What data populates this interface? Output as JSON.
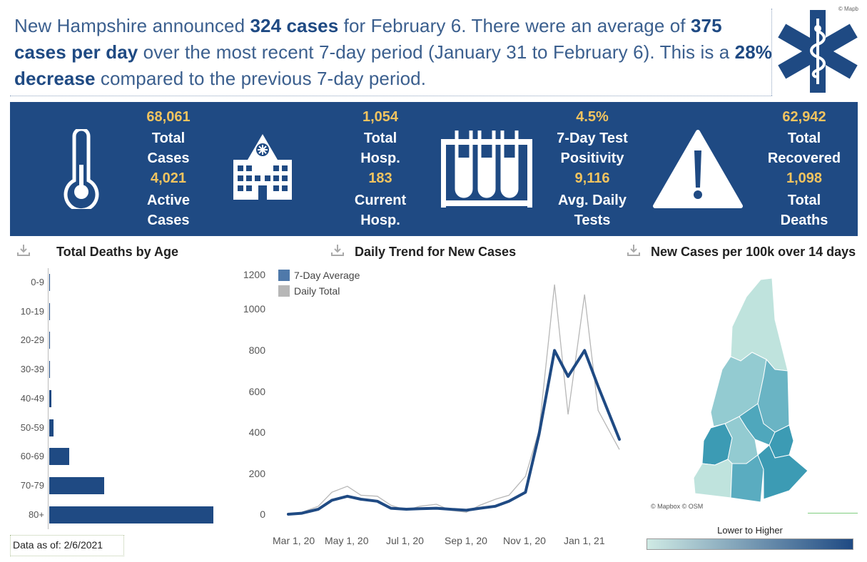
{
  "attribution_top": "© Mapb",
  "headline": {
    "p1": "New Hampshire announced ",
    "cases": "324 cases",
    "p2": " for February 6. There were an average of ",
    "avg": "375 cases per day",
    "p3": " over the most recent 7-day period (January 31 to February 6). This is a ",
    "change": "28% decrease",
    "p4": " compared to the previous 7-day period."
  },
  "kpis": {
    "total_cases": {
      "value": "68,061",
      "label1": "Total",
      "label2": "Cases"
    },
    "active_cases": {
      "value": "4,021",
      "label1": "Active",
      "label2": "Cases"
    },
    "total_hosp": {
      "value": "1,054",
      "label1": "Total",
      "label2": "Hosp."
    },
    "current_hosp": {
      "value": "183",
      "label1": "Current",
      "label2": "Hosp."
    },
    "positivity": {
      "value": "4.5%",
      "label1": "7-Day Test",
      "label2": "Positivity"
    },
    "avg_tests": {
      "value": "9,116",
      "label1": "Avg. Daily",
      "label2": "Tests"
    },
    "total_recovered": {
      "value": "62,942",
      "label1": "Total",
      "label2": "Recovered"
    },
    "total_deaths": {
      "value": "1,098",
      "label1": "Total",
      "label2": "Deaths"
    }
  },
  "colors": {
    "banner": "#1f4a83",
    "accent": "#f2c45f",
    "line": "#1f4a83",
    "daily": "#b7b7b7"
  },
  "icons": [
    "thermometer-icon",
    "hospital-icon",
    "test-tubes-icon",
    "warning-icon",
    "star-of-life-icon",
    "download-icon"
  ],
  "deaths_by_age": {
    "title": "Total Deaths by Age",
    "categories": [
      "0-9",
      "10-19",
      "20-29",
      "30-39",
      "40-49",
      "50-59",
      "60-69",
      "70-79",
      "80+"
    ],
    "values": [
      0,
      0,
      1,
      1,
      10,
      22,
      106,
      290,
      868
    ],
    "xlim": [
      0,
      880
    ]
  },
  "daily_trend": {
    "title": "Daily Trend for New Cases",
    "legend": [
      "7-Day Average",
      "Daily Total"
    ],
    "y_ticks": [
      "0",
      "200",
      "400",
      "600",
      "800",
      "1000",
      "1200"
    ],
    "x_ticks": [
      "Mar 1, 20",
      "May 1, 20",
      "Jul 1, 20",
      "Sep 1, 20",
      "Nov 1, 20",
      "Jan 1, 21"
    ]
  },
  "chart_data": {
    "type": "line",
    "ylim": [
      0,
      1200
    ],
    "series": [
      {
        "name": "7-Day Average",
        "x": [
          "2020-03-01",
          "2020-03-15",
          "2020-04-01",
          "2020-04-15",
          "2020-05-01",
          "2020-05-15",
          "2020-06-01",
          "2020-06-15",
          "2020-07-01",
          "2020-07-15",
          "2020-08-01",
          "2020-08-15",
          "2020-09-01",
          "2020-09-15",
          "2020-10-01",
          "2020-10-15",
          "2020-11-01",
          "2020-11-15",
          "2020-12-01",
          "2020-12-15",
          "2021-01-01",
          "2021-01-15",
          "2021-02-06"
        ],
        "values": [
          0,
          5,
          25,
          70,
          90,
          75,
          65,
          30,
          25,
          28,
          30,
          25,
          20,
          30,
          40,
          65,
          110,
          400,
          820,
          690,
          820,
          640,
          375
        ]
      },
      {
        "name": "Daily Total",
        "x": [
          "2020-03-01",
          "2020-03-15",
          "2020-04-01",
          "2020-04-15",
          "2020-05-01",
          "2020-05-15",
          "2020-06-01",
          "2020-06-15",
          "2020-07-01",
          "2020-07-15",
          "2020-08-01",
          "2020-08-15",
          "2020-09-01",
          "2020-09-15",
          "2020-10-01",
          "2020-10-15",
          "2020-11-01",
          "2020-11-15",
          "2020-12-01",
          "2020-12-15",
          "2021-01-01",
          "2021-01-15",
          "2021-02-06"
        ],
        "values": [
          0,
          10,
          40,
          110,
          140,
          95,
          90,
          45,
          20,
          40,
          50,
          20,
          10,
          45,
          75,
          95,
          190,
          420,
          1150,
          500,
          1100,
          520,
          324
        ]
      }
    ]
  },
  "map_panel": {
    "title": "New Cases per 100k over 14 days",
    "attribution": "© Mapbox © OSM",
    "scale_label": "Lower to Higher",
    "scale_colors": [
      "#cfeae4",
      "#1f4a83"
    ]
  },
  "footer": {
    "data_asof": "Data as of: 2/6/2021"
  }
}
